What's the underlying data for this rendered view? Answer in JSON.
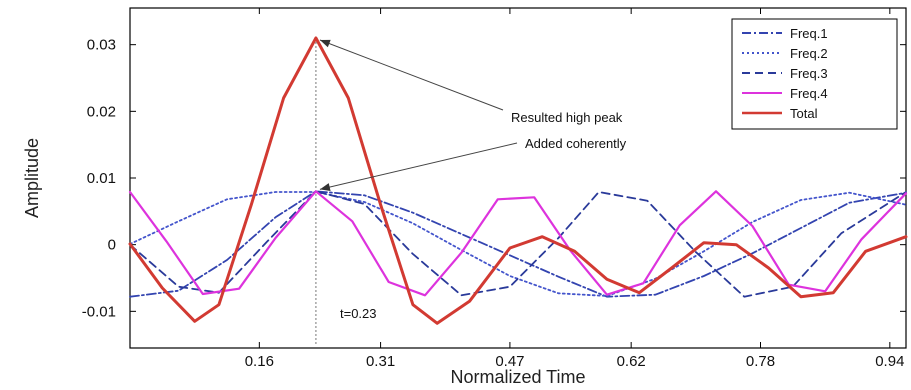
{
  "chart_data": {
    "type": "line",
    "xlabel": "Normalized Time",
    "ylabel": "Amplitude",
    "xlim": [
      0.0,
      0.96
    ],
    "ylim": [
      -0.0155,
      0.0355
    ],
    "x_ticks": [
      0.16,
      0.31,
      0.47,
      0.62,
      0.78,
      0.94
    ],
    "x_tick_labels": [
      "0.16",
      "0.31",
      "0.47",
      "0.62",
      "0.78",
      "0.94"
    ],
    "y_ticks": [
      -0.01,
      0,
      0.01,
      0.02,
      0.03
    ],
    "y_tick_labels": [
      "-0.01",
      "0",
      "0.01",
      "0.02",
      "0.03"
    ],
    "grid": false,
    "legend_position": "top-right",
    "peak_time": 0.23,
    "series": [
      {
        "name": "Freq.1",
        "color": "#3344b0",
        "dash": "dashdot",
        "x": [
          0.0,
          0.06,
          0.12,
          0.18,
          0.23,
          0.29,
          0.35,
          0.41,
          0.47,
          0.53,
          0.59,
          0.65,
          0.71,
          0.77,
          0.83,
          0.89,
          0.96
        ],
        "y": [
          -0.0078,
          -0.0069,
          -0.0023,
          0.0041,
          0.008,
          0.0074,
          0.0048,
          0.0016,
          -0.0016,
          -0.0048,
          -0.0078,
          -0.0075,
          -0.0047,
          -0.0013,
          0.0025,
          0.0063,
          0.0078
        ]
      },
      {
        "name": "Freq.2",
        "color": "#4455cc",
        "dash": "dotted",
        "x": [
          0.0,
          0.06,
          0.12,
          0.18,
          0.23,
          0.29,
          0.35,
          0.41,
          0.47,
          0.53,
          0.59,
          0.65,
          0.71,
          0.77,
          0.83,
          0.89,
          0.96
        ],
        "y": [
          0.0001,
          0.0035,
          0.0068,
          0.0079,
          0.0079,
          0.0064,
          0.0032,
          -0.0008,
          -0.0047,
          -0.0073,
          -0.0077,
          -0.0051,
          -0.001,
          0.0034,
          0.0067,
          0.0078,
          0.006
        ]
      },
      {
        "name": "Freq.3",
        "color": "#2a3a9a",
        "dash": "dashed",
        "x": [
          0.0,
          0.06,
          0.11,
          0.17,
          0.23,
          0.29,
          0.35,
          0.41,
          0.47,
          0.53,
          0.58,
          0.64,
          0.7,
          0.76,
          0.82,
          0.88,
          0.96
        ],
        "y": [
          0.0,
          -0.0063,
          -0.0072,
          0.0005,
          0.008,
          0.0061,
          -0.0014,
          -0.0076,
          -0.0063,
          0.001,
          0.0079,
          0.0066,
          -0.0011,
          -0.0078,
          -0.0063,
          0.0017,
          0.0079
        ]
      },
      {
        "name": "Freq.4",
        "color": "#dd33dd",
        "dash": "solid",
        "x": [
          0.0,
          0.045,
          0.09,
          0.135,
          0.18,
          0.23,
          0.275,
          0.32,
          0.365,
          0.41,
          0.455,
          0.5,
          0.545,
          0.59,
          0.635,
          0.68,
          0.725,
          0.77,
          0.815,
          0.86,
          0.905,
          0.96
        ],
        "y": [
          0.0079,
          0.0005,
          -0.0074,
          -0.0066,
          0.001,
          0.008,
          0.0035,
          -0.0056,
          -0.0076,
          -0.0012,
          0.0068,
          0.0071,
          -0.0009,
          -0.0075,
          -0.0058,
          0.0029,
          0.008,
          0.0028,
          -0.006,
          -0.007,
          0.0008,
          0.0077
        ]
      },
      {
        "name": "Total",
        "color": "#d23a32",
        "dash": "solid",
        "x": [
          0.0,
          0.04,
          0.08,
          0.11,
          0.15,
          0.19,
          0.23,
          0.27,
          0.31,
          0.35,
          0.38,
          0.42,
          0.47,
          0.51,
          0.55,
          0.59,
          0.63,
          0.67,
          0.71,
          0.75,
          0.79,
          0.83,
          0.87,
          0.91,
          0.96
        ],
        "y": [
          0.0001,
          -0.0065,
          -0.0115,
          -0.009,
          0.006,
          0.022,
          0.031,
          0.022,
          0.006,
          -0.009,
          -0.0118,
          -0.0085,
          -0.0005,
          0.0012,
          -0.001,
          -0.0052,
          -0.0072,
          -0.0035,
          0.0003,
          0.0,
          -0.0035,
          -0.0078,
          -0.0072,
          -0.001,
          0.0012
        ]
      }
    ],
    "annotations": [
      {
        "text": "Resulted high peak",
        "target": [
          0.23,
          0.031
        ]
      },
      {
        "text": "Added coherently",
        "target": [
          0.23,
          0.008
        ]
      },
      {
        "text": "t=0.23",
        "target": [
          0.23,
          -0.0145
        ]
      }
    ]
  }
}
